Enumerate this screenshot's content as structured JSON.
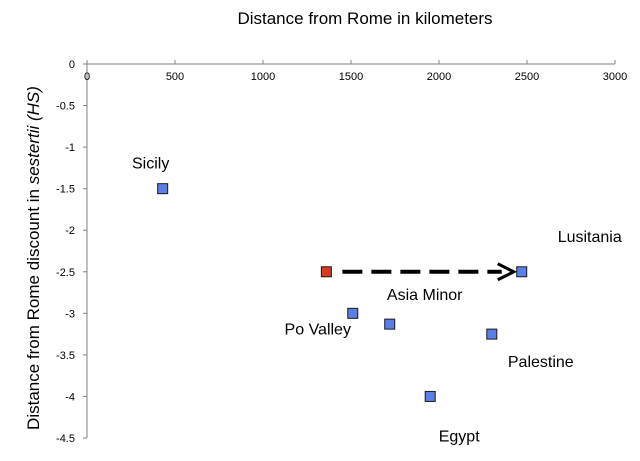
{
  "chart_data": {
    "type": "scatter",
    "title": "Distance from Rome in kilometers",
    "ylabel_prefix": "Distance from Rome discount in ",
    "ylabel_italic": "sestertii (HS)",
    "xlim": [
      0,
      3000
    ],
    "ylim": [
      -4.5,
      0
    ],
    "xticks": [
      0,
      500,
      1000,
      1500,
      2000,
      2500,
      3000
    ],
    "yticks": [
      0,
      -0.5,
      -1,
      -1.5,
      -2,
      -2.5,
      -3,
      -3.5,
      -4,
      -4.5
    ],
    "grid": false,
    "points": [
      {
        "name": "Sicily",
        "x": 430,
        "y": -1.5,
        "color": "#5b7fe6"
      },
      {
        "name": "Rome-origin marker",
        "x": 1360,
        "y": -2.5,
        "color": "#d93a1e"
      },
      {
        "name": "Po Valley",
        "x": 1510,
        "y": -3.0,
        "color": "#5b7fe6"
      },
      {
        "name": "Asia Minor",
        "x": 1720,
        "y": -3.13,
        "color": "#5b7fe6"
      },
      {
        "name": "Egypt",
        "x": 1950,
        "y": -4.0,
        "color": "#5b7fe6"
      },
      {
        "name": "Palestine",
        "x": 2300,
        "y": -3.25,
        "color": "#5b7fe6"
      },
      {
        "name": "Lusitania",
        "x": 2470,
        "y": -2.5,
        "color": "#5b7fe6"
      }
    ],
    "labels": [
      {
        "text": "Sicily",
        "x": 430,
        "y": -1.5
      },
      {
        "text": "Po Valley",
        "x": 1510,
        "y": -3.0
      },
      {
        "text": "Asia Minor",
        "x": 1720,
        "y": -3.13
      },
      {
        "text": "Egypt",
        "x": 1950,
        "y": -4.0
      },
      {
        "text": "Palestine",
        "x": 2300,
        "y": -3.25
      },
      {
        "text": "Lusitania",
        "x": 2470,
        "y": -2.5
      }
    ],
    "arrow": {
      "from": [
        1360,
        -2.5
      ],
      "to": [
        2470,
        -2.5
      ],
      "style": "dashed"
    }
  }
}
